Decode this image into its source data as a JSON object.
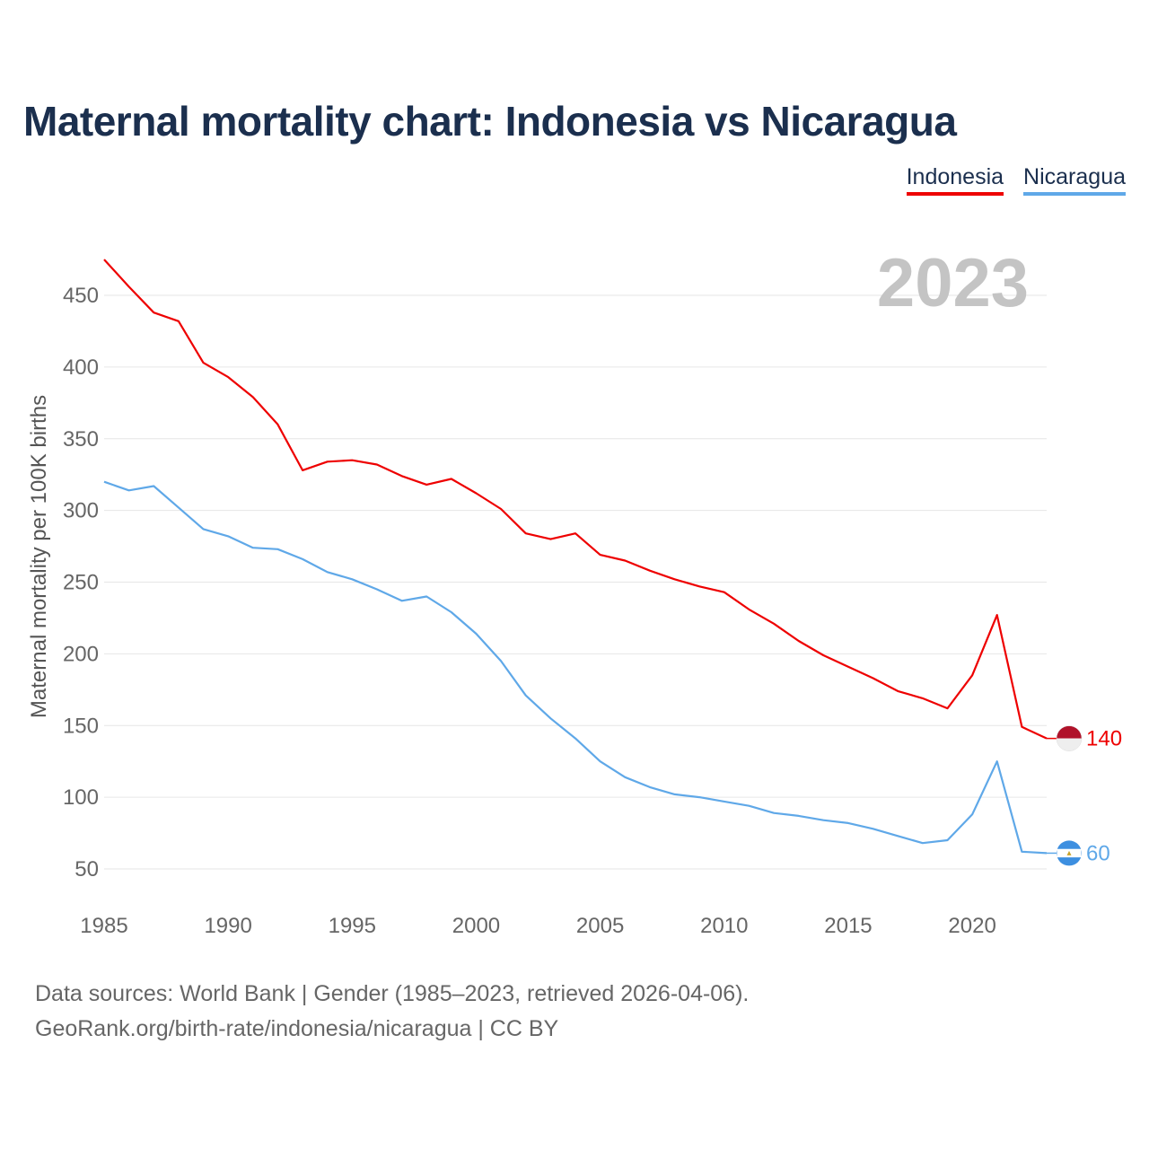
{
  "title": "Maternal mortality chart: Indonesia vs Nicaragua",
  "legend": [
    {
      "label": "Indonesia",
      "color": "#ee0000"
    },
    {
      "label": "Nicaragua",
      "color": "#5fa8e8"
    }
  ],
  "source_line1": "Data sources: World Bank | Gender (1985–2023, retrieved 2026-04-06).",
  "source_line2": "GeoRank.org/birth-rate/indonesia/nicaragua | CC BY",
  "chart_data": {
    "type": "line",
    "title": "Maternal mortality chart: Indonesia vs Nicaragua",
    "xlabel": "",
    "ylabel": "Maternal mortality per 100K births",
    "year_label": "2023",
    "xlim": [
      1985,
      2023
    ],
    "ylim": [
      50,
      475
    ],
    "grid": true,
    "legend_position": "top-right",
    "x_ticks": [
      1985,
      1990,
      1995,
      2000,
      2005,
      2010,
      2015,
      2020
    ],
    "y_ticks": [
      50,
      100,
      150,
      200,
      250,
      300,
      350,
      400,
      450
    ],
    "x": [
      1985,
      1986,
      1987,
      1988,
      1989,
      1990,
      1991,
      1992,
      1993,
      1994,
      1995,
      1996,
      1997,
      1998,
      1999,
      2000,
      2001,
      2002,
      2003,
      2004,
      2005,
      2006,
      2007,
      2008,
      2009,
      2010,
      2011,
      2012,
      2013,
      2014,
      2015,
      2016,
      2017,
      2018,
      2019,
      2020,
      2021,
      2022,
      2023
    ],
    "series": [
      {
        "name": "Indonesia",
        "color": "#ee0000",
        "end_label": "140",
        "values": [
          475,
          456,
          438,
          432,
          403,
          393,
          379,
          360,
          328,
          334,
          335,
          332,
          324,
          318,
          322,
          312,
          301,
          284,
          280,
          284,
          269,
          265,
          258,
          252,
          247,
          243,
          231,
          221,
          209,
          199,
          191,
          183,
          174,
          169,
          162,
          185,
          227,
          149,
          141
        ]
      },
      {
        "name": "Nicaragua",
        "color": "#5fa8e8",
        "end_label": "60",
        "values": [
          320,
          314,
          317,
          302,
          287,
          282,
          274,
          273,
          266,
          257,
          252,
          245,
          237,
          240,
          229,
          214,
          195,
          171,
          155,
          141,
          125,
          114,
          107,
          102,
          100,
          97,
          94,
          89,
          87,
          84,
          82,
          78,
          73,
          68,
          70,
          88,
          125,
          62,
          61
        ]
      }
    ]
  }
}
